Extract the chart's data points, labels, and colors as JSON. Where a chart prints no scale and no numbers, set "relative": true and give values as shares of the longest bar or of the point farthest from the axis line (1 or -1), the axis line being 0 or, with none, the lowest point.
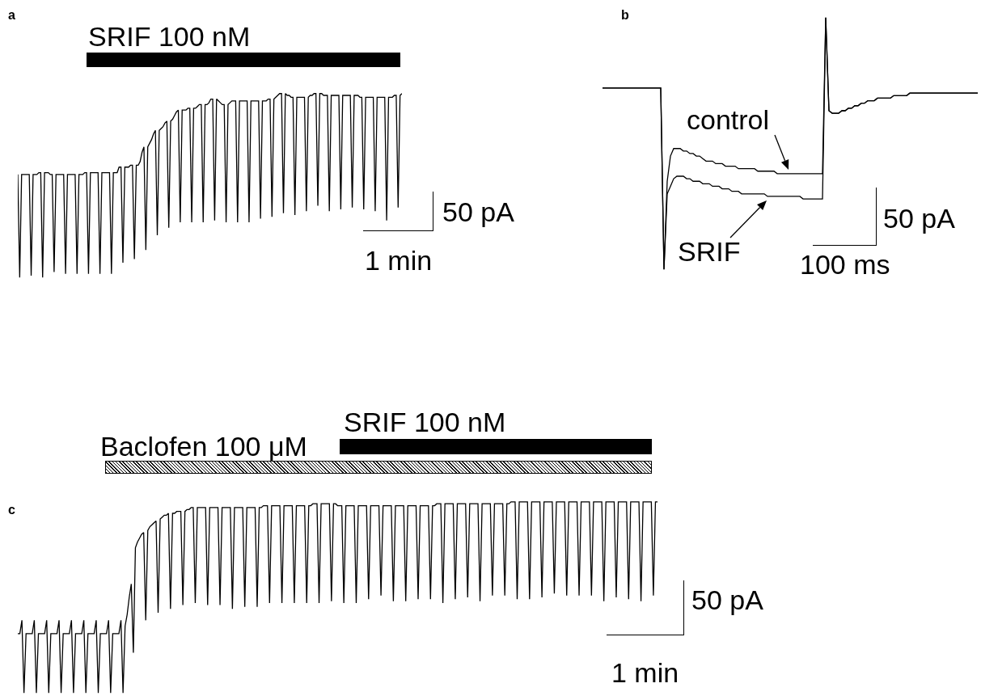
{
  "chart_data": [
    {
      "type": "line",
      "title": "a",
      "relative": true,
      "tick_labels": false,
      "annotations": [
        "SRIF 100 nM",
        "50 pA",
        "1 min"
      ],
      "categories": [
        null,
        null,
        null,
        null,
        null,
        null,
        null,
        null,
        null,
        null,
        null,
        null,
        null,
        null,
        null,
        null,
        null,
        null,
        null,
        null,
        null,
        null,
        null,
        null,
        null,
        null,
        null,
        null,
        null,
        null,
        null,
        null,
        null,
        null,
        null,
        null,
        null,
        null,
        null,
        null,
        null,
        null,
        null,
        null,
        null,
        null,
        null,
        null,
        null,
        null,
        null,
        null,
        null,
        null,
        null,
        null,
        null,
        null,
        null,
        null,
        null,
        null,
        null,
        null,
        null,
        null,
        null,
        null,
        null,
        null,
        null,
        null,
        null,
        null,
        null,
        null,
        null,
        null,
        null,
        null,
        null,
        null,
        null,
        null,
        null,
        null,
        null,
        null,
        null,
        null,
        null,
        null,
        null,
        null,
        null,
        null,
        null,
        null,
        null,
        null,
        null,
        null,
        null,
        null,
        null,
        null,
        null,
        null,
        null,
        null,
        null,
        null,
        null,
        null,
        null,
        null,
        null,
        null,
        null,
        null,
        null,
        null,
        null,
        null,
        null,
        null,
        null,
        null,
        null,
        null,
        null,
        null,
        null,
        null,
        null,
        null,
        null,
        null,
        null,
        null,
        null,
        null,
        null,
        null,
        null,
        null,
        null,
        null,
        null,
        null,
        null,
        null,
        null,
        null,
        null,
        null,
        null,
        null,
        null,
        null,
        null,
        null,
        null,
        null,
        null,
        null,
        null,
        null,
        null,
        null,
        null,
        null,
        null,
        null,
        null,
        null,
        null,
        null,
        null,
        null,
        null,
        null,
        null,
        null,
        null,
        null,
        null,
        null,
        null,
        null,
        null,
        null,
        null,
        null,
        null,
        null,
        null,
        null,
        null,
        null,
        null,
        null
      ],
      "series": [
        {
          "color": "#000000",
          "values": [
            0.56,
            0,
            0.56,
            0.56,
            0.56,
            0.56,
            0.56,
            0.01,
            0.56,
            0.56,
            0.56,
            0.57,
            0.57,
            0,
            0.57,
            0.57,
            0.57,
            0.56,
            0.56,
            0.03,
            0.56,
            0.56,
            0.56,
            0.56,
            0.56,
            0.02,
            0.56,
            0.56,
            0.56,
            0.56,
            0.56,
            0.02,
            0.56,
            0.56,
            0.56,
            0.57,
            0.57,
            0.02,
            0.57,
            0.57,
            0.57,
            0.57,
            0.57,
            0.02,
            0.57,
            0.57,
            0.57,
            0.57,
            0.57,
            0.02,
            0.57,
            0.57,
            0.57,
            0.6,
            0.6,
            0.08,
            0.6,
            0.6,
            0.6,
            0.61,
            0.61,
            0.1,
            0.61,
            0.61,
            0.63,
            0.68,
            0.71,
            0.15,
            0.71,
            0.73,
            0.75,
            0.78,
            0.8,
            0.23,
            0.8,
            0.81,
            0.82,
            0.84,
            0.85,
            0.27,
            0.85,
            0.86,
            0.88,
            0.9,
            0.91,
            0.3,
            0.91,
            0.91,
            0.91,
            0.92,
            0.92,
            0.3,
            0.92,
            0.92,
            0.93,
            0.94,
            0.94,
            0.3,
            0.94,
            0.94,
            0.95,
            0.97,
            0.97,
            0.31,
            0.97,
            0.96,
            0.95,
            0.94,
            0.94,
            0.3,
            0.94,
            0.95,
            0.96,
            0.96,
            0.96,
            0.3,
            0.96,
            0.96,
            0.96,
            0.96,
            0.96,
            0.3,
            0.96,
            0.96,
            0.96,
            0.96,
            0.96,
            0.32,
            0.96,
            0.96,
            0.96,
            0.97,
            0.97,
            0.33,
            0.97,
            0.98,
            0.99,
            1,
            1,
            0.35,
            1,
            0.99,
            0.99,
            0.98,
            0.98,
            0.34,
            0.98,
            0.98,
            0.98,
            0.98,
            0.98,
            0.36,
            0.98,
            0.99,
            0.99,
            1,
            1,
            0.39,
            1,
            1,
            0.99,
            0.99,
            0.99,
            0.36,
            0.99,
            0.99,
            0.99,
            0.99,
            0.99,
            0.37,
            0.99,
            0.99,
            0.99,
            0.99,
            0.99,
            0.38,
            0.99,
            0.99,
            0.99,
            0.98,
            0.98,
            0.37,
            0.98,
            0.98,
            0.98,
            0.98,
            0.98,
            0.36,
            0.98,
            0.98,
            0.98,
            0.98,
            0.98,
            0.31,
            0.98,
            0.98,
            0.98,
            0.99,
            0.99,
            0.38,
            0.99,
            1
          ]
        }
      ]
    },
    {
      "type": "line",
      "title": "b",
      "relative": true,
      "tick_labels": false,
      "annotations": [
        "50 pA",
        "100 ms"
      ],
      "categories": [
        null,
        null,
        null,
        null,
        null,
        null,
        null,
        null,
        null,
        null,
        null,
        null,
        null,
        null,
        null,
        null,
        null,
        null,
        null,
        null,
        null,
        null,
        null,
        null,
        null,
        null,
        null,
        null,
        null,
        null,
        null,
        null,
        null,
        null,
        null,
        null,
        null,
        null,
        null,
        null,
        null,
        null,
        null,
        null,
        null,
        null,
        null,
        null,
        null,
        null,
        null,
        null,
        null,
        null,
        null,
        null,
        null,
        null,
        null,
        null,
        null,
        null,
        null,
        null,
        null,
        null,
        null,
        null,
        null,
        null,
        null,
        null,
        null,
        null,
        null,
        null,
        null,
        null,
        null,
        null,
        null,
        null,
        null,
        null,
        null,
        null,
        null,
        null,
        null,
        null,
        null,
        null,
        null,
        null,
        null,
        null,
        null,
        null,
        null,
        null,
        null,
        null,
        null,
        null,
        null,
        null,
        null,
        null,
        null,
        null,
        null,
        null,
        null,
        null,
        null,
        null,
        null
      ],
      "series": [
        {
          "name": "control",
          "color": "#000000",
          "values": [
            0.72,
            0.72,
            0.72,
            0.72,
            0.72,
            0.72,
            0.72,
            0.72,
            0.72,
            0.72,
            0.72,
            0.72,
            0.72,
            0.72,
            0.72,
            0.72,
            0.72,
            0.72,
            0.72,
            0,
            0.35,
            0.45,
            0.48,
            0.48,
            0.48,
            0.47,
            0.47,
            0.46,
            0.46,
            0.45,
            0.45,
            0.44,
            0.43,
            0.43,
            0.43,
            0.42,
            0.42,
            0.42,
            0.41,
            0.41,
            0.41,
            0.41,
            0.4,
            0.4,
            0.4,
            0.4,
            0.4,
            0.4,
            0.39,
            0.39,
            0.39,
            0.39,
            0.39,
            0.39,
            0.38,
            0.38,
            0.38,
            0.38,
            0.38,
            0.38,
            0.38,
            0.38,
            0.38,
            0.38,
            0.38,
            0.38,
            0.38,
            0.38,
            0.38,
            1,
            0.63,
            0.62,
            0.62,
            0.62,
            0.63,
            0.63,
            0.64,
            0.64,
            0.65,
            0.65,
            0.66,
            0.66,
            0.67,
            0.67,
            0.67,
            0.68,
            0.68,
            0.68,
            0.68,
            0.68,
            0.69,
            0.69,
            0.69,
            0.69,
            0.69,
            0.7,
            0.7,
            0.7,
            0.7,
            0.7,
            0.7,
            0.7,
            0.7,
            0.7,
            0.7,
            0.7,
            0.7,
            0.7,
            0.7,
            0.7,
            0.7,
            0.7,
            0.7,
            0.7,
            0.7,
            0.7,
            0.7
          ]
        },
        {
          "name": "SRIF",
          "color": "#000000",
          "values": [
            0.72,
            0.72,
            0.72,
            0.72,
            0.72,
            0.72,
            0.72,
            0.72,
            0.72,
            0.72,
            0.72,
            0.72,
            0.72,
            0.72,
            0.72,
            0.72,
            0.72,
            0.72,
            0.72,
            0,
            0.3,
            0.33,
            0.36,
            0.37,
            0.37,
            0.37,
            0.36,
            0.36,
            0.35,
            0.35,
            0.35,
            0.34,
            0.34,
            0.34,
            0.33,
            0.33,
            0.33,
            0.32,
            0.32,
            0.32,
            0.31,
            0.31,
            0.31,
            0.3,
            0.3,
            0.3,
            0.3,
            0.3,
            0.3,
            0.3,
            0.3,
            0.29,
            0.29,
            0.29,
            0.29,
            0.29,
            0.29,
            0.29,
            0.29,
            0.29,
            0.29,
            0.29,
            0.28,
            0.28,
            0.28,
            0.28,
            0.28,
            0.28,
            0.28,
            1,
            0.63,
            0.62,
            0.62,
            0.62,
            0.63,
            0.63,
            0.64,
            0.64,
            0.65,
            0.65,
            0.66,
            0.66,
            0.67,
            0.67,
            0.67,
            0.68,
            0.68,
            0.68,
            0.68,
            0.68,
            0.69,
            0.69,
            0.69,
            0.69,
            0.69,
            0.7,
            0.7,
            0.7,
            0.7,
            0.7,
            0.7,
            0.7,
            0.7,
            0.7,
            0.7,
            0.7,
            0.7,
            0.7,
            0.7,
            0.7,
            0.7,
            0.7,
            0.7,
            0.7,
            0.7,
            0.7,
            0.7
          ]
        }
      ]
    },
    {
      "type": "line",
      "title": "c",
      "relative": true,
      "tick_labels": false,
      "annotations": [
        "Baclofen 100 μM",
        "SRIF 100 nM",
        "50 pA",
        "1 min"
      ],
      "categories": [
        null,
        null,
        null,
        null,
        null,
        null,
        null,
        null,
        null,
        null,
        null,
        null,
        null,
        null,
        null,
        null,
        null,
        null,
        null,
        null,
        null,
        null,
        null,
        null,
        null,
        null,
        null,
        null,
        null,
        null,
        null,
        null,
        null,
        null,
        null,
        null,
        null,
        null,
        null,
        null,
        null,
        null,
        null,
        null,
        null,
        null,
        null,
        null,
        null,
        null,
        null,
        null,
        null,
        null,
        null,
        null,
        null,
        null,
        null,
        null,
        null,
        null,
        null,
        null,
        null,
        null,
        null,
        null,
        null,
        null,
        null,
        null,
        null,
        null,
        null,
        null,
        null,
        null,
        null,
        null,
        null,
        null,
        null,
        null,
        null,
        null,
        null,
        null,
        null,
        null,
        null,
        null,
        null,
        null,
        null,
        null,
        null,
        null,
        null,
        null,
        null,
        null,
        null,
        null,
        null,
        null,
        null,
        null,
        null,
        null,
        null,
        null,
        null,
        null,
        null,
        null,
        null,
        null,
        null,
        null,
        null,
        null,
        null,
        null,
        null,
        null,
        null,
        null,
        null,
        null,
        null,
        null,
        null,
        null,
        null,
        null,
        null,
        null,
        null,
        null,
        null,
        null,
        null,
        null,
        null,
        null,
        null,
        null,
        null,
        null,
        null,
        null,
        null,
        null,
        null,
        null,
        null,
        null,
        null,
        null,
        null,
        null,
        null,
        null,
        null,
        null,
        null,
        null,
        null,
        null,
        null,
        null,
        null,
        null,
        null,
        null,
        null,
        null,
        null,
        null,
        null,
        null,
        null,
        null,
        null,
        null,
        null,
        null,
        null,
        null,
        null,
        null,
        null,
        null,
        null,
        null,
        null,
        null,
        null,
        null,
        null,
        null,
        null,
        null,
        null,
        null,
        null,
        null,
        null,
        null,
        null,
        null,
        null,
        null,
        null,
        null,
        null,
        null,
        null,
        null,
        null,
        null,
        null,
        null,
        null,
        null,
        null,
        null,
        null,
        null,
        null,
        null,
        null,
        null,
        null,
        null,
        null,
        null,
        null,
        null,
        null,
        null,
        null,
        null,
        null,
        null,
        null,
        null,
        null,
        null,
        null,
        null,
        null,
        null,
        null,
        null,
        null,
        null,
        null,
        null,
        null,
        null,
        null,
        null,
        null,
        null,
        null,
        null,
        null,
        null,
        null,
        null,
        null,
        null,
        null,
        null,
        null,
        null,
        null,
        null,
        null,
        null,
        null,
        null,
        null,
        null,
        null,
        null,
        null,
        null,
        null,
        null,
        null,
        null,
        null,
        null,
        null,
        null,
        null,
        null,
        null,
        null,
        null,
        null,
        null,
        null,
        null,
        null,
        null,
        null,
        null
      ],
      "series": [
        {
          "color": "#000000",
          "values": [
            0.31,
            0.31,
            0.38,
            0,
            0.31,
            0.31,
            0.31,
            0.31,
            0.38,
            0,
            0.31,
            0.31,
            0.31,
            0.31,
            0.38,
            0,
            0.31,
            0.31,
            0.31,
            0.31,
            0.38,
            0,
            0.31,
            0.31,
            0.31,
            0.31,
            0.38,
            0,
            0.31,
            0.31,
            0.31,
            0.31,
            0.38,
            0,
            0.31,
            0.31,
            0.31,
            0.31,
            0.38,
            0,
            0.31,
            0.31,
            0.31,
            0.31,
            0.38,
            0,
            0.31,
            0.31,
            0.31,
            0.31,
            0.38,
            0,
            0.35,
            0.41,
            0.5,
            0.57,
            0.21,
            0.76,
            0.79,
            0.81,
            0.83,
            0.84,
            0.38,
            0.85,
            0.87,
            0.88,
            0.89,
            0.9,
            0.42,
            0.91,
            0.92,
            0.93,
            0.93,
            0.94,
            0.44,
            0.94,
            0.94,
            0.95,
            0.95,
            0.95,
            0.46,
            0.95,
            0.96,
            0.96,
            0.97,
            0.97,
            0.47,
            0.97,
            0.97,
            0.97,
            0.97,
            0.97,
            0.46,
            0.97,
            0.97,
            0.97,
            0.97,
            0.97,
            0.46,
            0.97,
            0.97,
            0.97,
            0.97,
            0.97,
            0.44,
            0.97,
            0.97,
            0.97,
            0.97,
            0.97,
            0.45,
            0.97,
            0.97,
            0.97,
            0.97,
            0.97,
            0.45,
            0.97,
            0.97,
            0.98,
            0.98,
            0.98,
            0.47,
            0.98,
            0.98,
            0.98,
            0.98,
            0.98,
            0.47,
            0.98,
            0.98,
            0.98,
            0.98,
            0.98,
            0.47,
            0.98,
            0.98,
            0.98,
            0.98,
            0.98,
            0.47,
            0.98,
            0.98,
            0.99,
            0.99,
            0.99,
            0.47,
            0.99,
            0.99,
            0.99,
            0.99,
            0.99,
            0.48,
            0.99,
            0.99,
            0.98,
            0.98,
            0.98,
            0.47,
            0.98,
            0.98,
            0.98,
            0.98,
            0.98,
            0.47,
            0.98,
            0.98,
            0.98,
            0.98,
            0.98,
            0.49,
            0.98,
            0.98,
            0.98,
            0.98,
            0.98,
            0.51,
            0.98,
            0.98,
            0.98,
            0.98,
            0.98,
            0.48,
            0.98,
            0.98,
            0.98,
            0.98,
            0.98,
            0.48,
            0.98,
            0.98,
            0.98,
            0.98,
            0.98,
            0.49,
            0.98,
            0.98,
            0.98,
            0.98,
            0.98,
            0.49,
            0.98,
            0.98,
            0.99,
            0.99,
            0.99,
            0.47,
            0.99,
            0.99,
            0.99,
            0.99,
            0.99,
            0.49,
            0.99,
            0.99,
            0.99,
            0.99,
            0.99,
            0.5,
            0.99,
            0.99,
            0.99,
            0.99,
            0.99,
            0.48,
            0.99,
            0.99,
            0.99,
            0.99,
            0.99,
            0.51,
            0.99,
            0.99,
            0.99,
            0.99,
            0.99,
            0.51,
            0.99,
            0.99,
            1,
            1,
            1,
            0.49,
            1,
            1,
            1,
            1,
            1,
            0.49,
            1,
            1,
            1,
            1,
            1,
            0.5,
            1,
            1,
            1,
            1,
            1,
            0.52,
            1,
            1,
            1,
            1,
            1,
            0.51,
            1,
            1,
            1,
            1,
            1,
            0.51,
            1,
            1,
            1,
            1,
            1,
            0.51,
            1,
            1,
            1,
            1,
            1,
            0.48,
            1,
            1,
            1,
            1,
            1,
            0.5,
            1,
            1,
            1,
            1,
            1,
            0.49,
            1,
            1,
            1,
            1,
            1,
            0.48,
            1,
            1,
            1,
            1,
            1,
            0.51,
            1,
            1
          ]
        }
      ]
    }
  ]
}
